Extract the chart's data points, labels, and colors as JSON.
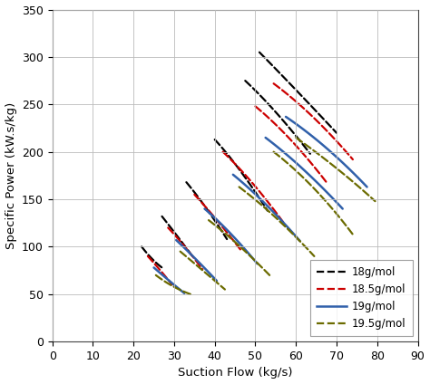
{
  "xlabel": "Suction Flow (kg/s)",
  "ylabel": "Specific Power (kW.s/kg)",
  "xlim": [
    0,
    90
  ],
  "ylim": [
    0,
    350
  ],
  "xticks": [
    0,
    10,
    20,
    30,
    40,
    50,
    60,
    70,
    80,
    90
  ],
  "yticks": [
    0,
    50,
    100,
    150,
    200,
    250,
    300,
    350
  ],
  "series": [
    {
      "label": "18g/mol",
      "color": "#000000",
      "linestyle": "--",
      "linewidth": 1.6,
      "curves": [
        {
          "x": [
            22.0,
            24.5,
            27.0
          ],
          "y": [
            100,
            86,
            78
          ]
        },
        {
          "x": [
            27.0,
            30.5,
            34.5
          ],
          "y": [
            132,
            113,
            90
          ]
        },
        {
          "x": [
            33.0,
            37.5,
            43.0
          ],
          "y": [
            168,
            145,
            108
          ]
        },
        {
          "x": [
            40.0,
            46.0,
            53.0
          ],
          "y": [
            213,
            185,
            138
          ]
        },
        {
          "x": [
            47.5,
            55.0,
            63.5
          ],
          "y": [
            275,
            245,
            198
          ]
        },
        {
          "x": [
            51.0,
            59.5,
            70.0
          ],
          "y": [
            305,
            268,
            220
          ]
        }
      ]
    },
    {
      "label": "18.5g/mol",
      "color": "#cc0000",
      "linestyle": "--",
      "linewidth": 1.6,
      "curves": [
        {
          "x": [
            23.5,
            26.5,
            29.5
          ],
          "y": [
            90,
            76,
            60
          ]
        },
        {
          "x": [
            28.5,
            32.5,
            37.0
          ],
          "y": [
            120,
            102,
            76
          ]
        },
        {
          "x": [
            35.0,
            40.0,
            46.5
          ],
          "y": [
            155,
            132,
            96
          ]
        },
        {
          "x": [
            42.0,
            49.0,
            57.0
          ],
          "y": [
            200,
            172,
            125
          ]
        },
        {
          "x": [
            50.0,
            58.5,
            67.5
          ],
          "y": [
            248,
            218,
            168
          ]
        },
        {
          "x": [
            54.5,
            64.0,
            74.0
          ],
          "y": [
            272,
            242,
            192
          ]
        }
      ]
    },
    {
      "label": "19g/mol",
      "color": "#3060aa",
      "linestyle": "-",
      "linewidth": 1.8,
      "curves": [
        {
          "x": [
            25.0,
            28.5,
            32.5
          ],
          "y": [
            78,
            65,
            51
          ]
        },
        {
          "x": [
            30.5,
            35.0,
            40.5
          ],
          "y": [
            107,
            89,
            64
          ]
        },
        {
          "x": [
            37.5,
            43.5,
            50.5
          ],
          "y": [
            140,
            118,
            82
          ]
        },
        {
          "x": [
            44.5,
            52.0,
            61.0
          ],
          "y": [
            176,
            150,
            106
          ]
        },
        {
          "x": [
            52.5,
            61.5,
            71.5
          ],
          "y": [
            215,
            186,
            140
          ]
        },
        {
          "x": [
            57.5,
            67.5,
            77.5
          ],
          "y": [
            237,
            208,
            163
          ]
        }
      ]
    },
    {
      "label": "19.5g/mol",
      "color": "#6b6b00",
      "linestyle": "--",
      "linewidth": 1.6,
      "curves": [
        {
          "x": [
            25.5,
            29.5,
            34.0
          ],
          "y": [
            70,
            57,
            50
          ]
        },
        {
          "x": [
            31.5,
            36.5,
            42.5
          ],
          "y": [
            95,
            77,
            55
          ]
        },
        {
          "x": [
            38.5,
            45.5,
            53.5
          ],
          "y": [
            128,
            105,
            70
          ]
        },
        {
          "x": [
            46.0,
            55.0,
            64.5
          ],
          "y": [
            163,
            134,
            90
          ]
        },
        {
          "x": [
            54.5,
            64.5,
            74.0
          ],
          "y": [
            200,
            167,
            113
          ]
        },
        {
          "x": [
            60.0,
            70.5,
            79.5
          ],
          "y": [
            215,
            183,
            148
          ]
        }
      ]
    }
  ]
}
